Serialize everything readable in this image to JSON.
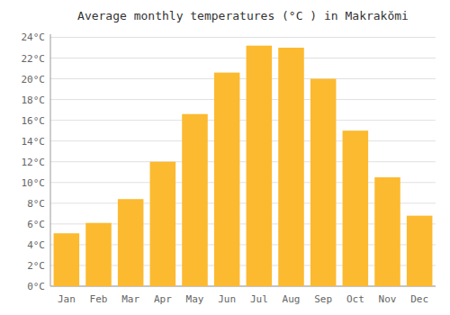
{
  "chart_data": {
    "type": "bar",
    "title": "Average monthly temperatures (°C ) in Makrakŏmi",
    "categories": [
      "Jan",
      "Feb",
      "Mar",
      "Apr",
      "May",
      "Jun",
      "Jul",
      "Aug",
      "Sep",
      "Oct",
      "Nov",
      "Dec"
    ],
    "values": [
      5.1,
      6.1,
      8.4,
      12.0,
      16.6,
      20.6,
      23.2,
      23.0,
      20.0,
      15.0,
      10.5,
      6.8
    ],
    "color": "#FCBA30",
    "ylim": [
      0,
      24.3
    ],
    "yticks": [
      {
        "value": 0,
        "label": "0°C"
      },
      {
        "value": 2,
        "label": "2°C"
      },
      {
        "value": 4,
        "label": "4°C"
      },
      {
        "value": 6,
        "label": "6°C"
      },
      {
        "value": 8,
        "label": "8°C"
      },
      {
        "value": 10,
        "label": "10°C"
      },
      {
        "value": 12,
        "label": "12°C"
      },
      {
        "value": 14,
        "label": "14°C"
      },
      {
        "value": 16,
        "label": "16°C"
      },
      {
        "value": 18,
        "label": "18°C"
      },
      {
        "value": 20,
        "label": "20°C"
      },
      {
        "value": 22,
        "label": "22°C"
      },
      {
        "value": 24,
        "label": "24°C"
      }
    ],
    "grid": true
  }
}
